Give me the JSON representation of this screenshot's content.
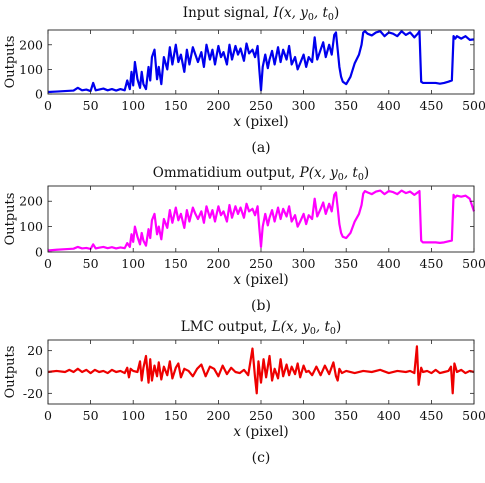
{
  "figure": {
    "panels": [
      {
        "title_prefix": "Input signal, ",
        "title_func": "I",
        "title_args": "(x, y",
        "title_sub0": "0",
        "title_mid": ", t",
        "title_sub1": "0",
        "title_close": ")",
        "ylabel": "Outputs",
        "xlabel_var": "x",
        "xlabel_rest": " (pixel)",
        "caption": "(a)"
      },
      {
        "title_prefix": "Ommatidium output, ",
        "title_func": "P",
        "title_args": "(x, y",
        "title_sub0": "0",
        "title_mid": ", t",
        "title_sub1": "0",
        "title_close": ")",
        "ylabel": "Outputs",
        "xlabel_var": "x",
        "xlabel_rest": " (pixel)",
        "caption": "(b)"
      },
      {
        "title_prefix": "LMC output, ",
        "title_func": "L",
        "title_args": "(x, y",
        "title_sub0": "0",
        "title_mid": ", t",
        "title_sub1": "0",
        "title_close": ")",
        "ylabel": "Outputs",
        "xlabel_var": "x",
        "xlabel_rest": " (pixel)",
        "caption": "(c)"
      }
    ]
  },
  "chart_data": [
    {
      "type": "line",
      "title": "Input signal, I(x, y0, t0)",
      "xlabel": "x (pixel)",
      "ylabel": "Outputs",
      "xlim": [
        0,
        500
      ],
      "ylim": [
        0,
        260
      ],
      "xticks": [
        0,
        50,
        100,
        150,
        200,
        250,
        300,
        350,
        400,
        450,
        500
      ],
      "yticks": [
        0,
        100,
        200
      ],
      "grid": false,
      "series": [
        {
          "color": "#0000ee",
          "x": [
            0,
            10,
            20,
            30,
            35,
            40,
            45,
            50,
            53,
            56,
            60,
            65,
            70,
            75,
            80,
            85,
            90,
            93,
            96,
            98,
            100,
            102,
            105,
            108,
            110,
            112,
            115,
            118,
            120,
            122,
            125,
            128,
            130,
            133,
            136,
            140,
            143,
            146,
            150,
            153,
            156,
            160,
            163,
            166,
            170,
            173,
            176,
            180,
            183,
            186,
            190,
            193,
            196,
            200,
            203,
            206,
            210,
            213,
            216,
            220,
            223,
            226,
            230,
            233,
            236,
            240,
            243,
            246,
            248,
            250,
            252,
            255,
            258,
            260,
            263,
            266,
            270,
            273,
            276,
            280,
            283,
            286,
            290,
            293,
            296,
            300,
            303,
            306,
            310,
            313,
            316,
            320,
            323,
            326,
            330,
            333,
            336,
            338,
            340,
            342,
            344,
            346,
            350,
            355,
            360,
            365,
            368,
            370,
            372,
            375,
            380,
            385,
            390,
            395,
            400,
            405,
            410,
            415,
            420,
            425,
            430,
            434,
            436,
            438,
            440,
            445,
            450,
            455,
            460,
            465,
            470,
            474,
            476,
            478,
            480,
            485,
            490,
            495,
            500
          ],
          "values": [
            8,
            10,
            12,
            14,
            25,
            15,
            18,
            12,
            45,
            15,
            18,
            22,
            15,
            20,
            14,
            20,
            15,
            55,
            20,
            90,
            35,
            130,
            60,
            25,
            90,
            40,
            20,
            110,
            55,
            150,
            180,
            60,
            110,
            40,
            150,
            100,
            190,
            120,
            200,
            130,
            160,
            90,
            180,
            120,
            190,
            160,
            130,
            170,
            110,
            200,
            140,
            180,
            120,
            195,
            150,
            170,
            120,
            200,
            140,
            195,
            160,
            185,
            135,
            205,
            165,
            180,
            150,
            195,
            100,
            15,
            110,
            160,
            105,
            140,
            175,
            120,
            190,
            130,
            180,
            140,
            195,
            120,
            150,
            100,
            125,
            160,
            110,
            150,
            130,
            230,
            140,
            180,
            210,
            150,
            200,
            160,
            240,
            250,
            180,
            110,
            70,
            50,
            40,
            70,
            125,
            160,
            200,
            250,
            255,
            245,
            238,
            250,
            255,
            235,
            250,
            245,
            235,
            255,
            240,
            250,
            230,
            245,
            255,
            50,
            45,
            45,
            45,
            45,
            42,
            45,
            50,
            55,
            235,
            225,
            235,
            225,
            235,
            220,
            222
          ]
        }
      ]
    },
    {
      "type": "line",
      "title": "Ommatidium output, P(x, y0, t0)",
      "xlabel": "x (pixel)",
      "ylabel": "Outputs",
      "xlim": [
        0,
        500
      ],
      "ylim": [
        0,
        260
      ],
      "xticks": [
        0,
        50,
        100,
        150,
        200,
        250,
        300,
        350,
        400,
        450,
        500
      ],
      "yticks": [
        0,
        100,
        200
      ],
      "grid": false,
      "series": [
        {
          "color": "#ff00ff",
          "x": [
            0,
            10,
            20,
            30,
            35,
            40,
            45,
            50,
            53,
            56,
            60,
            65,
            70,
            75,
            80,
            85,
            90,
            93,
            96,
            98,
            100,
            102,
            105,
            108,
            110,
            112,
            115,
            118,
            120,
            122,
            125,
            128,
            130,
            133,
            136,
            140,
            143,
            146,
            150,
            153,
            156,
            160,
            163,
            166,
            170,
            173,
            176,
            180,
            183,
            186,
            190,
            193,
            196,
            200,
            203,
            206,
            210,
            213,
            216,
            220,
            223,
            226,
            230,
            233,
            236,
            240,
            243,
            246,
            248,
            250,
            252,
            255,
            258,
            260,
            263,
            266,
            270,
            273,
            276,
            280,
            283,
            286,
            290,
            293,
            296,
            300,
            303,
            306,
            310,
            313,
            316,
            320,
            323,
            326,
            330,
            333,
            336,
            338,
            340,
            342,
            344,
            346,
            350,
            355,
            360,
            365,
            368,
            370,
            372,
            375,
            380,
            385,
            390,
            395,
            400,
            405,
            410,
            415,
            420,
            425,
            430,
            434,
            436,
            438,
            440,
            445,
            450,
            455,
            460,
            465,
            470,
            474,
            476,
            478,
            480,
            485,
            490,
            495,
            500
          ],
          "values": [
            6,
            9,
            11,
            13,
            20,
            14,
            16,
            12,
            30,
            14,
            17,
            20,
            15,
            19,
            14,
            18,
            15,
            35,
            20,
            70,
            40,
            100,
            60,
            30,
            75,
            45,
            25,
            90,
            55,
            125,
            150,
            70,
            100,
            50,
            130,
            95,
            165,
            115,
            175,
            125,
            150,
            95,
            165,
            120,
            175,
            150,
            130,
            160,
            115,
            180,
            135,
            165,
            120,
            180,
            145,
            160,
            120,
            185,
            135,
            180,
            150,
            175,
            135,
            190,
            160,
            170,
            145,
            180,
            95,
            20,
            100,
            150,
            105,
            135,
            165,
            120,
            175,
            130,
            170,
            140,
            180,
            120,
            145,
            100,
            120,
            150,
            110,
            145,
            130,
            210,
            140,
            170,
            195,
            150,
            190,
            160,
            225,
            235,
            175,
            110,
            75,
            60,
            55,
            75,
            120,
            150,
            185,
            230,
            240,
            235,
            228,
            238,
            242,
            228,
            240,
            236,
            228,
            242,
            232,
            238,
            225,
            235,
            240,
            45,
            38,
            38,
            38,
            38,
            36,
            38,
            42,
            45,
            225,
            215,
            222,
            218,
            222,
            210,
            160
          ]
        }
      ]
    },
    {
      "type": "line",
      "title": "LMC output, L(x, y0, t0)",
      "xlabel": "x (pixel)",
      "ylabel": "Outputs",
      "xlim": [
        0,
        500
      ],
      "ylim": [
        -30,
        30
      ],
      "xticks": [
        0,
        50,
        100,
        150,
        200,
        250,
        300,
        350,
        400,
        450,
        500
      ],
      "yticks": [
        -20,
        0,
        20
      ],
      "grid": false,
      "series": [
        {
          "color": "#ee0000",
          "x": [
            0,
            10,
            20,
            25,
            30,
            35,
            40,
            45,
            50,
            55,
            60,
            65,
            70,
            75,
            80,
            85,
            90,
            93,
            95,
            97,
            100,
            105,
            108,
            110,
            112,
            115,
            118,
            120,
            122,
            125,
            128,
            130,
            133,
            136,
            140,
            143,
            146,
            150,
            153,
            156,
            160,
            165,
            170,
            175,
            180,
            185,
            190,
            195,
            200,
            205,
            210,
            215,
            220,
            225,
            230,
            235,
            240,
            243,
            245,
            247,
            250,
            253,
            256,
            260,
            263,
            266,
            270,
            273,
            276,
            280,
            283,
            286,
            290,
            293,
            296,
            300,
            303,
            306,
            310,
            315,
            320,
            325,
            330,
            335,
            338,
            340,
            342,
            345,
            350,
            360,
            370,
            380,
            390,
            400,
            410,
            420,
            425,
            430,
            433,
            435,
            438,
            440,
            445,
            450,
            455,
            460,
            465,
            470,
            473,
            475,
            477,
            480,
            485,
            490,
            495,
            500
          ],
          "values": [
            0,
            1,
            0,
            2,
            0,
            3,
            0,
            2,
            -1,
            2,
            0,
            1,
            -1,
            2,
            0,
            1,
            -1,
            4,
            -5,
            3,
            1,
            0,
            10,
            -8,
            4,
            15,
            -10,
            12,
            -8,
            6,
            -4,
            9,
            -7,
            5,
            -3,
            10,
            -6,
            4,
            8,
            -5,
            3,
            1,
            -4,
            3,
            7,
            -4,
            5,
            3,
            -4,
            6,
            -2,
            4,
            0,
            -1,
            2,
            -3,
            22,
            -5,
            -20,
            10,
            -10,
            12,
            -5,
            15,
            -8,
            3,
            -6,
            12,
            -4,
            7,
            -3,
            5,
            -2,
            8,
            -5,
            6,
            0,
            1,
            -3,
            5,
            -3,
            6,
            -2,
            9,
            -4,
            -8,
            3,
            -1,
            1,
            -1,
            1,
            0,
            2,
            -1,
            1,
            0,
            1,
            -1,
            24,
            -12,
            4,
            0,
            1,
            -1,
            2,
            -1,
            0,
            1,
            5,
            -20,
            8,
            0,
            2,
            -1,
            1,
            0
          ]
        }
      ]
    }
  ]
}
